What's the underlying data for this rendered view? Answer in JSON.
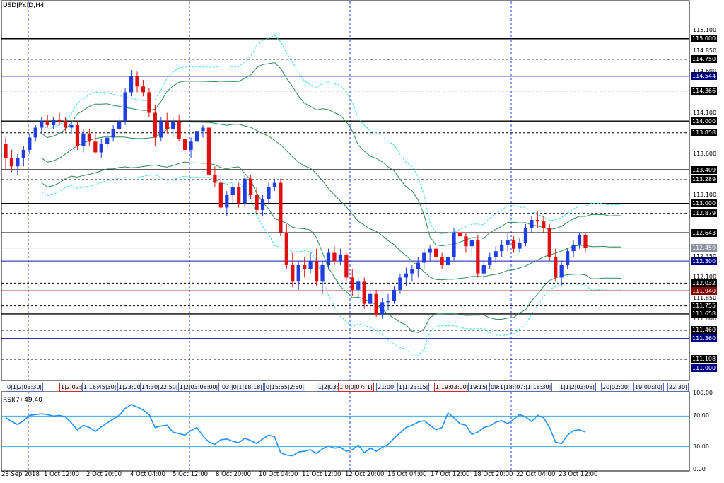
{
  "header": {
    "symbol": "USDJPY.ID,H4"
  },
  "colors": {
    "bull": "#1f3fe0",
    "bear": "#e01010",
    "band": "#2e8b57",
    "band_outer": "#40e0d0",
    "rsi": "#1e90ff",
    "grid": "#1f3fe0"
  },
  "price_axis": [
    {
      "label": "115.100",
      "v": 115.1
    },
    {
      "label": "114.850",
      "v": 114.85
    },
    {
      "label": "114.600",
      "v": 114.6
    },
    {
      "label": "114.100",
      "v": 114.1
    },
    {
      "label": "113.600",
      "v": 113.6
    },
    {
      "label": "113.100",
      "v": 113.1
    },
    {
      "label": "112.350",
      "v": 112.35
    },
    {
      "label": "112.100",
      "v": 112.1
    },
    {
      "label": "111.850",
      "v": 111.85
    },
    {
      "label": "111.600",
      "v": 111.6
    }
  ],
  "levels": [
    {
      "label": "115.000",
      "v": 115.0,
      "style": "solid-black",
      "tag": "dark"
    },
    {
      "label": "114.750",
      "v": 114.75,
      "style": "dash-black",
      "tag": "dark"
    },
    {
      "label": "114.544",
      "v": 114.544,
      "style": "solid-navy",
      "tag": "navy"
    },
    {
      "label": "114.366",
      "v": 114.366,
      "style": "dash-black",
      "tag": "dark"
    },
    {
      "label": "114.000",
      "v": 114.0,
      "style": "solid-black",
      "tag": "dark"
    },
    {
      "label": "113.858",
      "v": 113.858,
      "style": "dash-black",
      "tag": "dark"
    },
    {
      "label": "113.409",
      "v": 113.409,
      "style": "solid-black",
      "tag": "dark"
    },
    {
      "label": "113.289",
      "v": 113.289,
      "style": "dash-black",
      "tag": "dark"
    },
    {
      "label": "113.000",
      "v": 113.0,
      "style": "solid-black",
      "tag": "dark"
    },
    {
      "label": "112.879",
      "v": 112.879,
      "style": "dash-black",
      "tag": "dark"
    },
    {
      "label": "112.643",
      "v": 112.643,
      "style": "solid-black",
      "tag": "dark"
    },
    {
      "label": "112.459",
      "v": 112.459,
      "style": "solid-gray",
      "tag": "gray"
    },
    {
      "label": "112.300",
      "v": 112.3,
      "style": "solid-navy",
      "tag": "navy"
    },
    {
      "label": "112.032",
      "v": 112.032,
      "style": "dash-black",
      "tag": "dark"
    },
    {
      "label": "111.940",
      "v": 111.94,
      "style": "solid-maroon",
      "tag": "maroon"
    },
    {
      "label": "111.755",
      "v": 111.755,
      "style": "dash-black",
      "tag": "dark"
    },
    {
      "label": "111.658",
      "v": 111.658,
      "style": "solid-black",
      "tag": "dark"
    },
    {
      "label": "111.460",
      "v": 111.46,
      "style": "dash-black",
      "tag": "dark"
    },
    {
      "label": "111.360",
      "v": 111.36,
      "style": "solid-navy",
      "tag": "navy"
    },
    {
      "label": "111.108",
      "v": 111.108,
      "style": "dash-black",
      "tag": "dark"
    },
    {
      "label": "111.000",
      "v": 111.0,
      "style": "solid-navy",
      "tag": "navy"
    }
  ],
  "time_axis": [
    "28 Sep 2018",
    "1 Oct 12:00",
    "2 Oct 20:00",
    "4 Oct 04:00",
    "5 Oct 12:00",
    "8 Oct 20:00",
    "10 Oct 04:00",
    "11 Oct 12:00",
    "12 Oct 20:00",
    "16 Oct 04:00",
    "17 Oct 12:00",
    "18 Oct 20:00",
    "22 Oct 04:00",
    "23 Oct 12:00"
  ],
  "event_strip": [
    {
      "t": "0|1|2|03:30|",
      "red": false
    },
    {
      "t": "1|2|02:|",
      "red": true
    },
    {
      "t": "1|16:45|30|",
      "red": false
    },
    {
      "t": "1|23:00|",
      "red": false
    },
    {
      "t": "14:30|22:50|",
      "red": false
    },
    {
      "t": "1|2|03:08:00|",
      "red": false
    },
    {
      "t": "03:|0|1|18:18|",
      "red": false
    },
    {
      "t": "0|15:55|2:50|",
      "red": false
    },
    {
      "t": "1|2|03:00|",
      "red": false
    },
    {
      "t": "1|0|0|07:|1|",
      "red": true
    },
    {
      "t": "21:00|",
      "red": false
    },
    {
      "t": "1|1|23:15|",
      "red": false
    },
    {
      "t": "1|19:03:00|",
      "red": true
    },
    {
      "t": "19:15|",
      "red": false
    },
    {
      "t": "09:1|18:|07:|1|18:30|",
      "red": false
    },
    {
      "t": "1|1|2|03:08|",
      "red": false
    },
    {
      "t": "20|02:00|",
      "red": false
    },
    {
      "t": "19|00:30|",
      "red": false
    },
    {
      "t": "22:30|",
      "red": false
    }
  ],
  "rsi": {
    "label": "RSI(7) 49.40",
    "axis": [
      "100.00",
      "70.00",
      "30.00",
      "0.00"
    ],
    "levels": [
      70,
      30
    ]
  },
  "chart_data": {
    "type": "candlestick",
    "symbol": "USDJPY.ID",
    "timeframe": "H4",
    "ylim": [
      110.85,
      115.35
    ],
    "close_range_note": "",
    "ohlc": [
      [
        113.72,
        113.8,
        113.4,
        113.55
      ],
      [
        113.55,
        113.65,
        113.38,
        113.45
      ],
      [
        113.45,
        113.6,
        113.35,
        113.55
      ],
      [
        113.55,
        113.7,
        113.45,
        113.65
      ],
      [
        113.65,
        113.85,
        113.6,
        113.8
      ],
      [
        113.8,
        113.95,
        113.75,
        113.92
      ],
      [
        113.92,
        114.05,
        113.85,
        114.0
      ],
      [
        114.0,
        114.08,
        113.92,
        113.95
      ],
      [
        113.95,
        114.05,
        113.9,
        114.02
      ],
      [
        114.02,
        114.1,
        113.95,
        114.0
      ],
      [
        114.0,
        114.05,
        113.88,
        113.92
      ],
      [
        113.92,
        114.0,
        113.85,
        113.95
      ],
      [
        113.95,
        114.0,
        113.65,
        113.7
      ],
      [
        113.7,
        113.9,
        113.62,
        113.85
      ],
      [
        113.85,
        113.9,
        113.7,
        113.75
      ],
      [
        113.75,
        113.85,
        113.6,
        113.62
      ],
      [
        113.62,
        113.78,
        113.55,
        113.72
      ],
      [
        113.72,
        113.85,
        113.68,
        113.8
      ],
      [
        113.8,
        113.95,
        113.75,
        113.9
      ],
      [
        113.9,
        114.05,
        113.85,
        114.0
      ],
      [
        114.0,
        114.4,
        113.95,
        114.35
      ],
      [
        114.35,
        114.62,
        114.3,
        114.55
      ],
      [
        114.55,
        114.6,
        114.35,
        114.42
      ],
      [
        114.42,
        114.5,
        114.3,
        114.35
      ],
      [
        114.35,
        114.4,
        114.05,
        114.1
      ],
      [
        114.1,
        114.2,
        113.7,
        113.8
      ],
      [
        113.8,
        114.05,
        113.75,
        114.0
      ],
      [
        114.0,
        114.1,
        113.85,
        113.9
      ],
      [
        113.9,
        114.05,
        113.8,
        114.0
      ],
      [
        114.0,
        114.08,
        113.75,
        113.78
      ],
      [
        113.78,
        113.9,
        113.6,
        113.65
      ],
      [
        113.65,
        113.8,
        113.55,
        113.75
      ],
      [
        113.75,
        113.92,
        113.7,
        113.88
      ],
      [
        113.88,
        113.95,
        113.8,
        113.92
      ],
      [
        113.92,
        113.95,
        113.3,
        113.35
      ],
      [
        113.35,
        113.45,
        113.2,
        113.25
      ],
      [
        113.25,
        113.35,
        112.9,
        112.95
      ],
      [
        112.95,
        113.15,
        112.85,
        113.1
      ],
      [
        113.1,
        113.25,
        113.0,
        113.2
      ],
      [
        113.2,
        113.25,
        112.95,
        113.0
      ],
      [
        113.0,
        113.35,
        112.95,
        113.3
      ],
      [
        113.3,
        113.35,
        113.05,
        113.1
      ],
      [
        113.1,
        113.2,
        112.88,
        112.92
      ],
      [
        112.92,
        113.1,
        112.85,
        113.05
      ],
      [
        113.05,
        113.25,
        113.0,
        113.2
      ],
      [
        113.2,
        113.3,
        113.15,
        113.25
      ],
      [
        113.25,
        113.3,
        112.6,
        112.65
      ],
      [
        112.65,
        112.75,
        112.2,
        112.25
      ],
      [
        112.25,
        112.4,
        111.98,
        112.05
      ],
      [
        112.05,
        112.3,
        111.95,
        112.25
      ],
      [
        112.25,
        112.35,
        112.1,
        112.2
      ],
      [
        112.2,
        112.4,
        112.15,
        112.3
      ],
      [
        112.3,
        112.45,
        112.0,
        112.05
      ],
      [
        112.05,
        112.3,
        111.9,
        112.25
      ],
      [
        112.25,
        112.45,
        112.2,
        112.4
      ],
      [
        112.4,
        112.48,
        112.25,
        112.3
      ],
      [
        112.3,
        112.45,
        112.25,
        112.38
      ],
      [
        112.38,
        112.4,
        112.05,
        112.1
      ],
      [
        112.1,
        112.2,
        111.88,
        111.95
      ],
      [
        111.95,
        112.1,
        111.85,
        112.05
      ],
      [
        112.05,
        112.1,
        111.72,
        111.78
      ],
      [
        111.78,
        111.95,
        111.65,
        111.9
      ],
      [
        111.9,
        111.95,
        111.62,
        111.65
      ],
      [
        111.65,
        111.85,
        111.6,
        111.8
      ],
      [
        111.8,
        111.9,
        111.7,
        111.82
      ],
      [
        111.82,
        112.0,
        111.78,
        111.95
      ],
      [
        111.95,
        112.15,
        111.9,
        112.1
      ],
      [
        112.1,
        112.22,
        112.0,
        112.15
      ],
      [
        112.15,
        112.25,
        112.05,
        112.2
      ],
      [
        112.2,
        112.35,
        112.1,
        112.28
      ],
      [
        112.28,
        112.45,
        112.2,
        112.4
      ],
      [
        112.4,
        112.5,
        112.3,
        112.45
      ],
      [
        112.45,
        112.48,
        112.3,
        112.35
      ],
      [
        112.35,
        112.4,
        112.2,
        112.25
      ],
      [
        112.25,
        112.4,
        112.2,
        112.35
      ],
      [
        112.35,
        112.7,
        112.3,
        112.65
      ],
      [
        112.65,
        112.72,
        112.55,
        112.6
      ],
      [
        112.6,
        112.65,
        112.4,
        112.48
      ],
      [
        112.48,
        112.58,
        112.35,
        112.55
      ],
      [
        112.55,
        112.62,
        112.1,
        112.15
      ],
      [
        112.15,
        112.3,
        112.08,
        112.25
      ],
      [
        112.25,
        112.4,
        112.2,
        112.35
      ],
      [
        112.35,
        112.48,
        112.28,
        112.42
      ],
      [
        112.42,
        112.55,
        112.35,
        112.5
      ],
      [
        112.5,
        112.65,
        112.42,
        112.55
      ],
      [
        112.55,
        112.6,
        112.4,
        112.45
      ],
      [
        112.45,
        112.58,
        112.4,
        112.52
      ],
      [
        112.52,
        112.75,
        112.48,
        112.7
      ],
      [
        112.7,
        112.85,
        112.65,
        112.8
      ],
      [
        112.8,
        112.9,
        112.7,
        112.78
      ],
      [
        112.78,
        112.85,
        112.65,
        112.7
      ],
      [
        112.7,
        112.75,
        112.3,
        112.35
      ],
      [
        112.35,
        112.45,
        112.05,
        112.1
      ],
      [
        112.1,
        112.3,
        112.0,
        112.25
      ],
      [
        112.25,
        112.45,
        112.2,
        112.42
      ],
      [
        112.42,
        112.55,
        112.35,
        112.5
      ],
      [
        112.5,
        112.65,
        112.45,
        112.62
      ],
      [
        112.62,
        112.64,
        112.4,
        112.46
      ]
    ],
    "bollinger_note": "",
    "rsi_values": [
      68,
      63,
      59,
      64,
      71,
      72,
      73,
      72,
      70,
      71,
      69,
      61,
      52,
      58,
      55,
      50,
      56,
      61,
      66,
      71,
      80,
      85,
      82,
      78,
      72,
      55,
      57,
      58,
      49,
      47,
      45,
      51,
      55,
      44,
      36,
      33,
      39,
      40,
      37,
      35,
      41,
      38,
      34,
      40,
      45,
      43,
      22,
      19,
      18,
      23,
      24,
      26,
      21,
      27,
      31,
      28,
      29,
      24,
      26,
      32,
      22,
      28,
      24,
      29,
      33,
      41,
      48,
      55,
      58,
      62,
      64,
      58,
      52,
      55,
      74,
      68,
      60,
      58,
      46,
      49,
      55,
      57,
      62,
      64,
      60,
      66,
      72,
      69,
      63,
      71,
      68,
      55,
      36,
      34,
      45,
      51,
      52,
      49
    ]
  }
}
